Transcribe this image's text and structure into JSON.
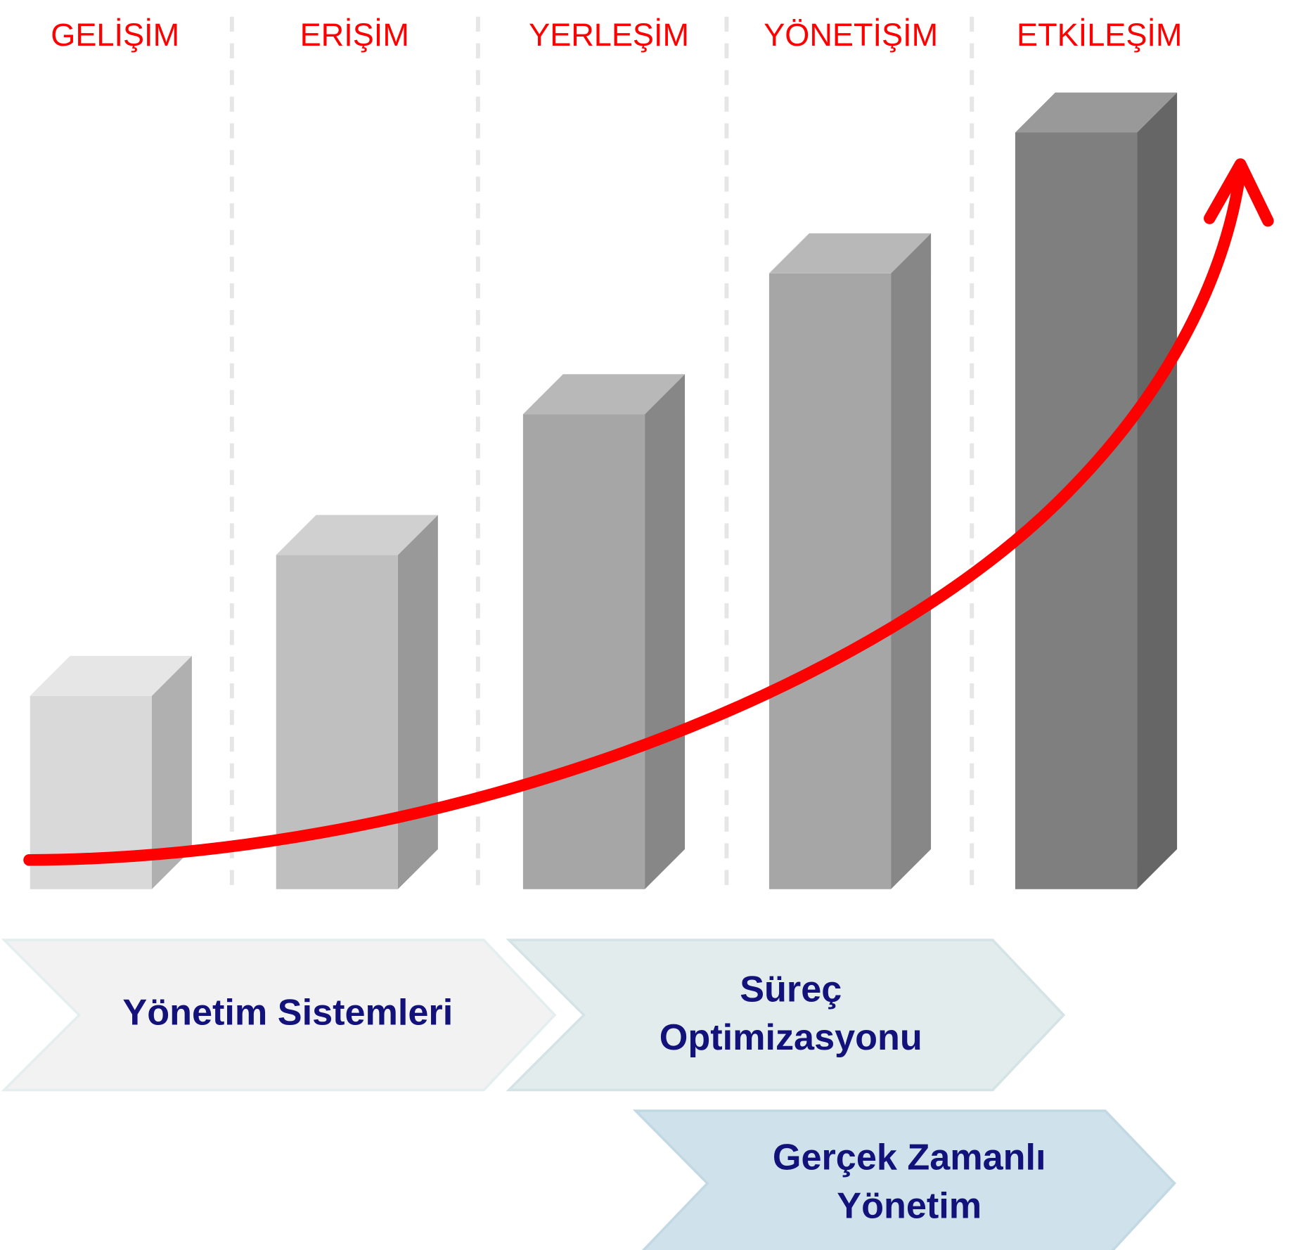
{
  "stages": [
    "GELİŞİM",
    "ERİŞİM",
    "YERLEŞİM",
    "YÖNETİŞİM",
    "ETKİLEŞİM"
  ],
  "chevrons": [
    {
      "lines": [
        "Yönetim Sistemleri"
      ]
    },
    {
      "lines": [
        "Süreç",
        "Optimizasyonu"
      ]
    },
    {
      "lines": [
        "Gerçek Zamanlı",
        "Yönetim"
      ]
    }
  ]
}
